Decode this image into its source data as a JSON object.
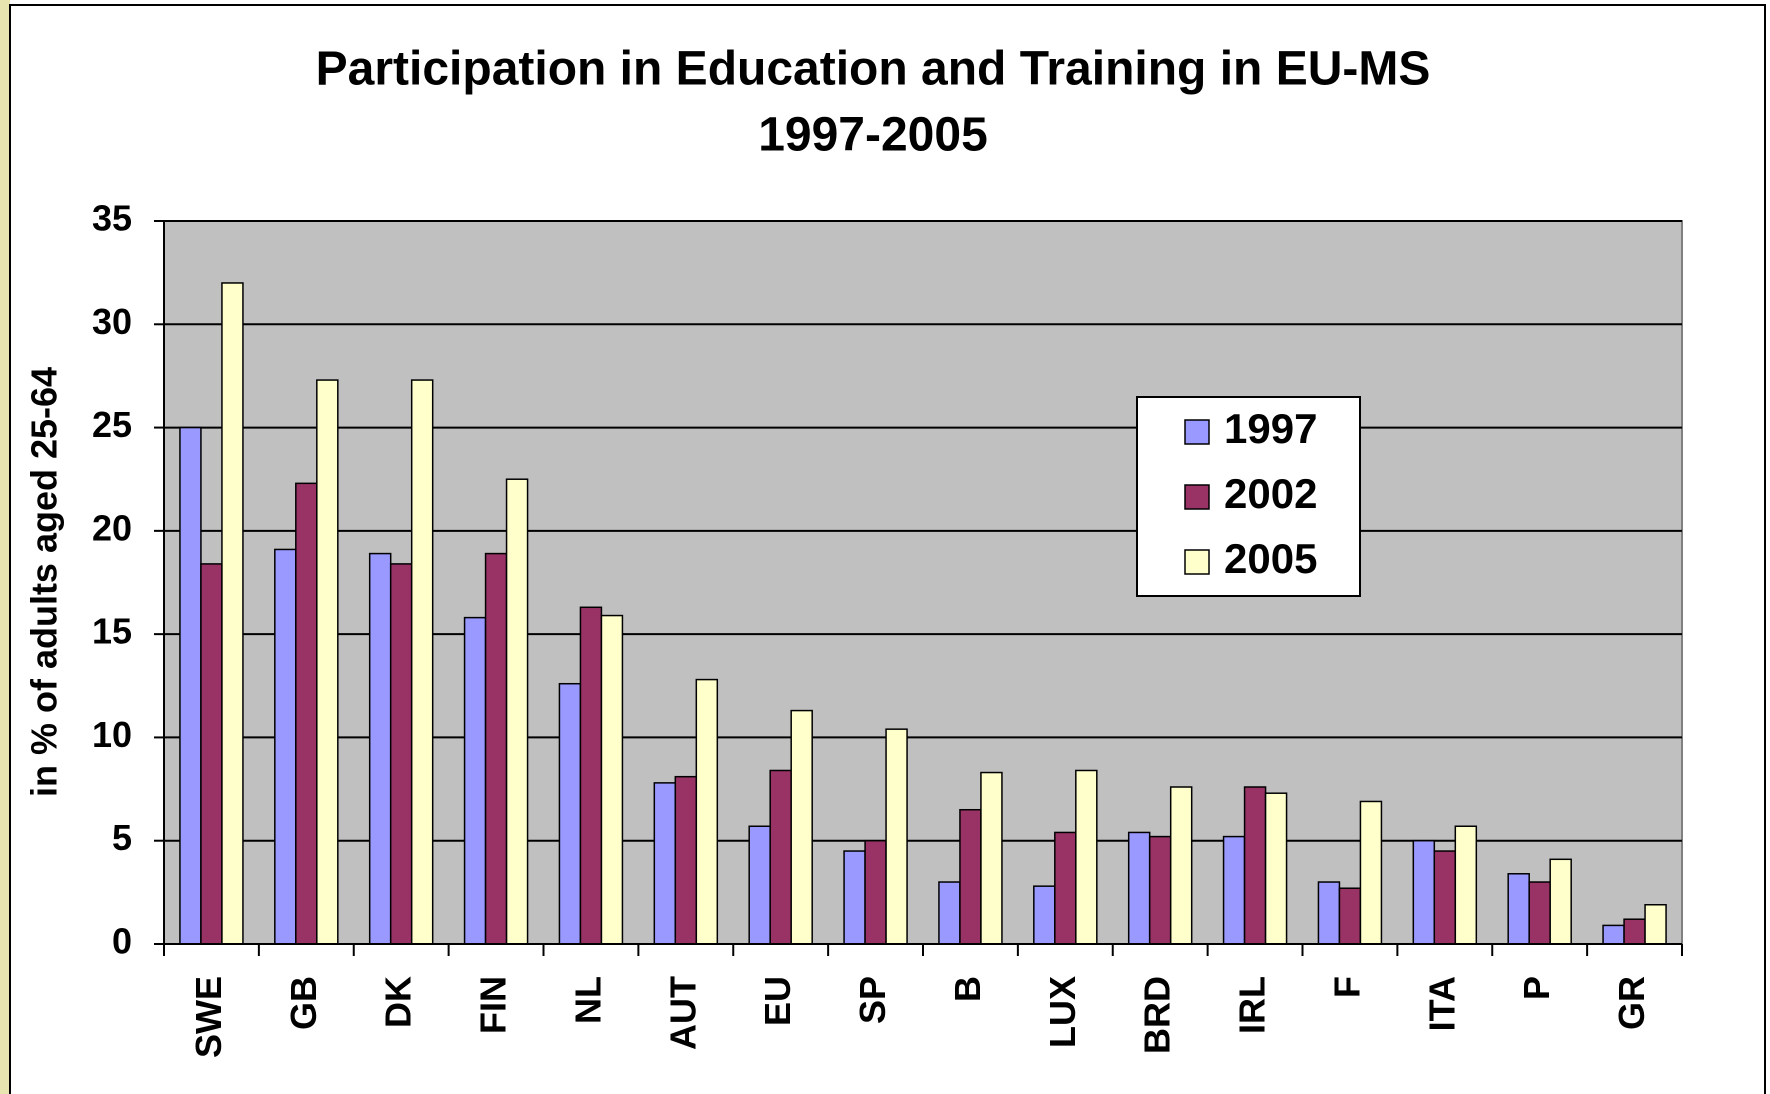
{
  "chart_data": {
    "type": "bar",
    "title": "Participation in Education and Training in EU-MS",
    "subtitle": "1997-2005",
    "y_label": "in % of adults aged 25-64",
    "categories": [
      "SWE",
      "GB",
      "DK",
      "FIN",
      "NL",
      "AUT",
      "EU",
      "SP",
      "B",
      "LUX",
      "BRD",
      "IRL",
      "F",
      "ITA",
      "P",
      "GR"
    ],
    "series": [
      {
        "name": "1997",
        "color": "#9999ff",
        "values": [
          25,
          19.1,
          18.9,
          15.8,
          12.6,
          7.8,
          5.7,
          4.5,
          3.0,
          2.8,
          5.4,
          5.2,
          3.0,
          5.0,
          3.4,
          0.9
        ]
      },
      {
        "name": "2002",
        "color": "#993366",
        "values": [
          18.4,
          22.3,
          18.4,
          18.9,
          16.3,
          8.1,
          8.4,
          5.0,
          6.5,
          5.4,
          5.2,
          7.6,
          2.7,
          4.5,
          3.0,
          1.2
        ]
      },
      {
        "name": "2005",
        "color": "#ffffcc",
        "values": [
          32.0,
          27.3,
          27.3,
          22.5,
          15.9,
          12.8,
          11.3,
          10.4,
          8.3,
          8.4,
          7.6,
          7.3,
          6.9,
          5.7,
          4.1,
          1.9
        ]
      }
    ],
    "ylim": [
      0,
      35
    ],
    "yticks": [
      0,
      5,
      10,
      15,
      20,
      25,
      30,
      35
    ],
    "grid": true,
    "plot_background": "#c0c0c0",
    "legend_position": "right"
  }
}
